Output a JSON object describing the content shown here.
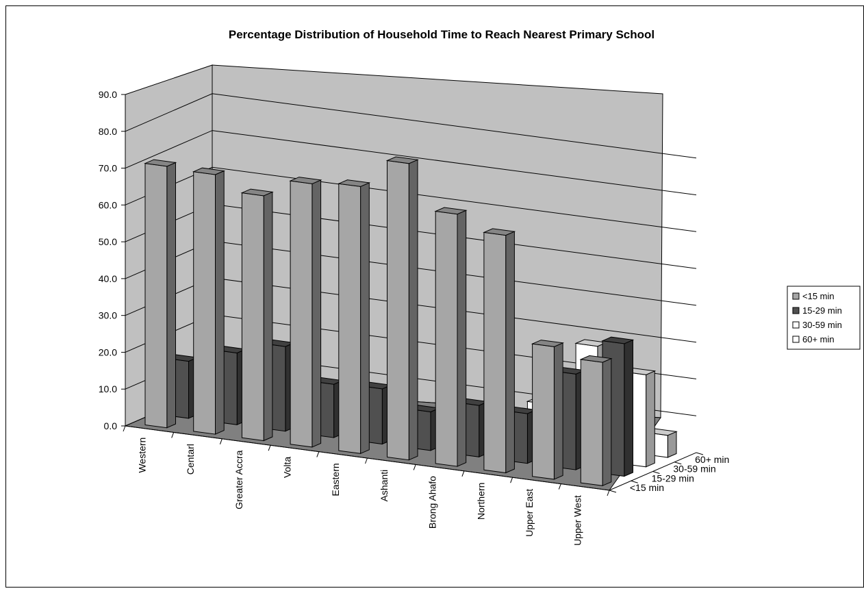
{
  "chart_data": {
    "type": "bar",
    "title": "Percentage Distribution of Household Time to Reach Nearest Primary School",
    "xlabel": "",
    "ylabel": "",
    "ylim": [
      0,
      90
    ],
    "yticks": [
      "0.0",
      "10.0",
      "20.0",
      "30.0",
      "40.0",
      "50.0",
      "60.0",
      "70.0",
      "80.0",
      "90.0"
    ],
    "categories": [
      "Western",
      "Centarl",
      "Greater Accra",
      "Volta",
      "Eastern",
      "Ashanti",
      "Brong Ahafo",
      "Northern",
      "Upper East",
      "Upper West"
    ],
    "depth_labels": [
      "60+ min",
      "30-59 min",
      "15-29 min",
      "<15 min"
    ],
    "series": [
      {
        "name": "<15 min",
        "values": [
          71.0,
          70.5,
          66.5,
          71.5,
          72.5,
          80.5,
          68.5,
          64.5,
          36.0,
          33.5
        ]
      },
      {
        "name": "15-29 min",
        "values": [
          15.5,
          19.5,
          23.0,
          14.5,
          15.0,
          10.5,
          14.0,
          13.5,
          26.0,
          36.0
        ]
      },
      {
        "name": "30-59 min",
        "values": [
          5.0,
          5.0,
          5.5,
          7.5,
          8.5,
          6.0,
          10.0,
          13.5,
          31.0,
          25.0
        ]
      },
      {
        "name": "60+ min",
        "values": [
          0.5,
          0.5,
          0.5,
          1.5,
          2.5,
          1.0,
          3.0,
          5.0,
          5.5,
          6.0
        ]
      }
    ],
    "colors": {
      "<15 min": "#a6a6a6",
      "15-29 min": "#505050",
      "30-59 min": "#ffffff",
      "60+ min": "#ffffff"
    },
    "legend_position": "right",
    "grid": true
  }
}
